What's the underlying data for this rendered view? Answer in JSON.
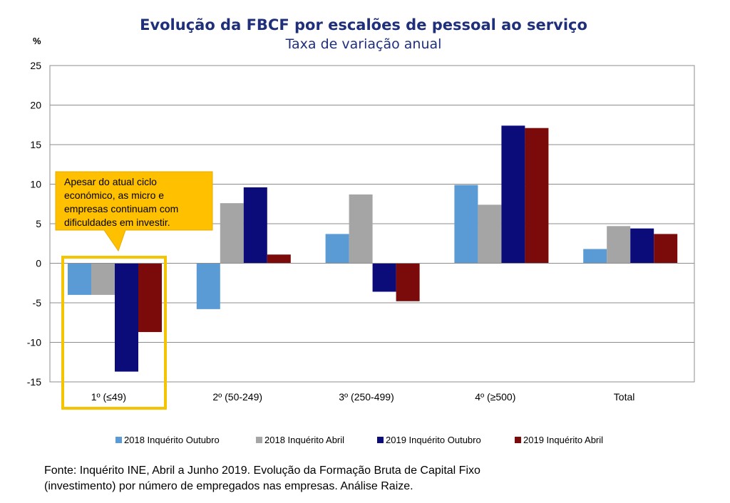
{
  "chart_data": {
    "type": "bar",
    "title": "Evolução da FBCF por escalões de pessoal ao serviço",
    "subtitle": "Taxa de variação anual",
    "ylabel": "%",
    "ylim": [
      -15,
      25
    ],
    "yticks": [
      25,
      20,
      15,
      10,
      5,
      0,
      -5,
      -10,
      -15
    ],
    "grid": true,
    "legend_position": "bottom",
    "categories": [
      "1º (≤49)",
      "2º (50-249)",
      "3º (250-499)",
      "4º (≥500)",
      "Total"
    ],
    "series": [
      {
        "name": "2018 Inquérito Outubro",
        "color": "#5b9bd5",
        "values": [
          -4.0,
          -5.8,
          3.7,
          9.9,
          1.8
        ]
      },
      {
        "name": "2018 Inquérito Abril",
        "color": "#a5a5a5",
        "values": [
          -4.0,
          7.6,
          8.7,
          7.4,
          4.7
        ]
      },
      {
        "name": "2019 Inquérito Outubro",
        "color": "#0b0b7a",
        "values": [
          -13.7,
          9.6,
          -3.6,
          17.4,
          4.4
        ]
      },
      {
        "name": "2019 Inquérito Abril",
        "color": "#7b0a0a",
        "values": [
          -8.7,
          1.1,
          -4.8,
          17.1,
          3.7
        ]
      }
    ],
    "annotation": {
      "lines": [
        "Apesar do atual ciclo",
        "económico, as micro e",
        "empresas continuam com",
        "dificuldades em investir."
      ],
      "category_highlight": "1º (≤49)",
      "callout_color": "#ffc000",
      "highlight_color": "#f5c400"
    }
  },
  "source_note": {
    "line1": "Fonte: Inquérito INE, Abril a Junho 2019. Evolução da Formação Bruta de Capital Fixo",
    "line2": "(investimento) por número de empregados nas empresas.  Análise Raize."
  }
}
